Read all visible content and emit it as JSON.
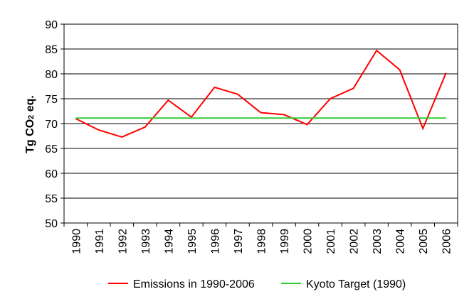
{
  "chart_data": {
    "type": "line",
    "title": "",
    "xlabel": "",
    "ylabel": "Tg CO₂ eq.",
    "ylabel_parts": {
      "main": "Tg CO",
      "sub": "2",
      "tail": " eq."
    },
    "ylim": [
      50,
      90
    ],
    "yticks": [
      50,
      55,
      60,
      65,
      70,
      75,
      80,
      85,
      90
    ],
    "grid": true,
    "legend_position": "bottom",
    "categories": [
      "1990",
      "1991",
      "1992",
      "1993",
      "1994",
      "1995",
      "1996",
      "1997",
      "1998",
      "1999",
      "2000",
      "2001",
      "2002",
      "2003",
      "2004",
      "2005",
      "2006"
    ],
    "series": [
      {
        "name": "Emissions in 1990-2006",
        "color": "#ff0000",
        "values": [
          71.0,
          68.7,
          67.3,
          69.3,
          74.7,
          71.3,
          77.3,
          75.9,
          72.2,
          71.8,
          69.8,
          75.0,
          77.1,
          84.7,
          80.8,
          69.0,
          80.2
        ]
      },
      {
        "name": "Kyoto Target (1990)",
        "color": "#33cc33",
        "values": [
          71.1,
          71.1,
          71.1,
          71.1,
          71.1,
          71.1,
          71.1,
          71.1,
          71.1,
          71.1,
          71.1,
          71.1,
          71.1,
          71.1,
          71.1,
          71.1,
          71.1
        ]
      }
    ]
  }
}
